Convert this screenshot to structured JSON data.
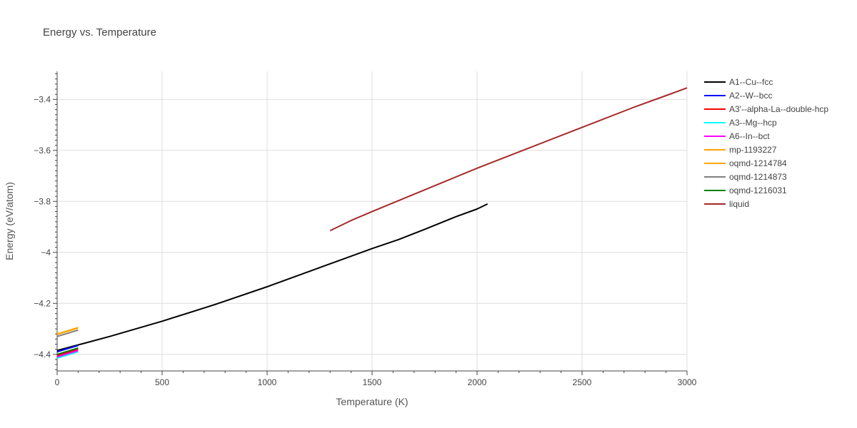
{
  "chart_data": {
    "type": "line",
    "title": "Energy vs. Temperature",
    "xlabel": "Temperature (K)",
    "ylabel": "Energy (eV/atom)",
    "xlim": [
      0,
      3000
    ],
    "ylim": [
      -4.465,
      -3.29
    ],
    "xticks": [
      0,
      500,
      1000,
      1500,
      2000,
      2500,
      3000
    ],
    "xtick_labels": [
      "0",
      "500",
      "1000",
      "1500",
      "2000",
      "2500",
      "3000"
    ],
    "yticks": [
      -4.4,
      -4.2,
      -4.0,
      -3.8,
      -3.6,
      -3.4
    ],
    "ytick_labels": [
      "−4.4",
      "−4.2",
      "−4",
      "−3.8",
      "−3.6",
      "−3.4"
    ],
    "grid": true,
    "legend_position": "right",
    "series": [
      {
        "name": "A1--Cu--fcc",
        "color": "#000000",
        "x": [
          0,
          250,
          500,
          750,
          1000,
          1250,
          1500,
          1625,
          1750,
          1900,
          2000,
          2050
        ],
        "y": [
          -4.385,
          -4.33,
          -4.27,
          -4.205,
          -4.135,
          -4.06,
          -3.985,
          -3.95,
          -3.91,
          -3.86,
          -3.83,
          -3.81
        ]
      },
      {
        "name": "A2--W--bcc",
        "color": "#0000ff",
        "x": [
          0,
          100
        ],
        "y": [
          -4.39,
          -4.365
        ]
      },
      {
        "name": "A3'--alpha-La--double-hcp",
        "color": "#ff0000",
        "x": [
          0,
          100
        ],
        "y": [
          -4.405,
          -4.38
        ]
      },
      {
        "name": "A3--Mg--hcp",
        "color": "#00ffff",
        "x": [
          0,
          100
        ],
        "y": [
          -4.415,
          -4.39
        ]
      },
      {
        "name": "A6--In--bct",
        "color": "#ff00ff",
        "x": [
          0,
          100
        ],
        "y": [
          -4.41,
          -4.385
        ]
      },
      {
        "name": "mp-1193227",
        "color": "#ffa500",
        "x": [
          0,
          100
        ],
        "y": [
          -4.32,
          -4.295
        ]
      },
      {
        "name": "oqmd-1214784",
        "color": "#ffa500",
        "x": [
          0,
          100
        ],
        "y": [
          -4.322,
          -4.297
        ]
      },
      {
        "name": "oqmd-1214873",
        "color": "#808080",
        "x": [
          0,
          100
        ],
        "y": [
          -4.33,
          -4.305
        ]
      },
      {
        "name": "oqmd-1216031",
        "color": "#008000",
        "x": [
          0,
          100
        ],
        "y": [
          -4.4,
          -4.375
        ]
      },
      {
        "name": "liquid",
        "color": "#a52a2a",
        "x": [
          1300,
          1400,
          1500,
          1750,
          2000,
          2250,
          2500,
          2750,
          2900,
          3000
        ],
        "y": [
          -3.915,
          -3.875,
          -3.84,
          -3.755,
          -3.67,
          -3.59,
          -3.51,
          -3.43,
          -3.385,
          -3.355
        ]
      }
    ]
  }
}
